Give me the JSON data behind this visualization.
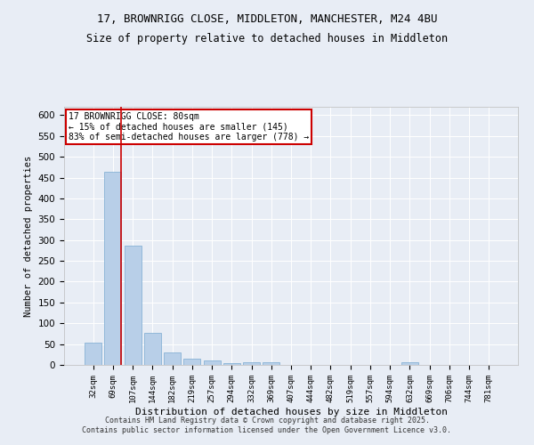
{
  "title_line1": "17, BROWNRIGG CLOSE, MIDDLETON, MANCHESTER, M24 4BU",
  "title_line2": "Size of property relative to detached houses in Middleton",
  "xlabel": "Distribution of detached houses by size in Middleton",
  "ylabel": "Number of detached properties",
  "categories": [
    "32sqm",
    "69sqm",
    "107sqm",
    "144sqm",
    "182sqm",
    "219sqm",
    "257sqm",
    "294sqm",
    "332sqm",
    "369sqm",
    "407sqm",
    "444sqm",
    "482sqm",
    "519sqm",
    "557sqm",
    "594sqm",
    "632sqm",
    "669sqm",
    "706sqm",
    "744sqm",
    "781sqm"
  ],
  "values": [
    53,
    463,
    287,
    78,
    31,
    15,
    10,
    5,
    6,
    7,
    0,
    0,
    0,
    0,
    0,
    0,
    6,
    0,
    0,
    0,
    0
  ],
  "bar_color": "#b8cfe8",
  "bar_edge_color": "#7aaad0",
  "bg_color": "#e8edf5",
  "grid_color": "#ffffff",
  "vline_x_idx": 1,
  "vline_color": "#cc0000",
  "annotation_text": "17 BROWNRIGG CLOSE: 80sqm\n← 15% of detached houses are smaller (145)\n83% of semi-detached houses are larger (778) →",
  "annotation_box_color": "#cc0000",
  "ylim": [
    0,
    620
  ],
  "yticks": [
    0,
    50,
    100,
    150,
    200,
    250,
    300,
    350,
    400,
    450,
    500,
    550,
    600
  ],
  "footer_line1": "Contains HM Land Registry data © Crown copyright and database right 2025.",
  "footer_line2": "Contains public sector information licensed under the Open Government Licence v3.0."
}
